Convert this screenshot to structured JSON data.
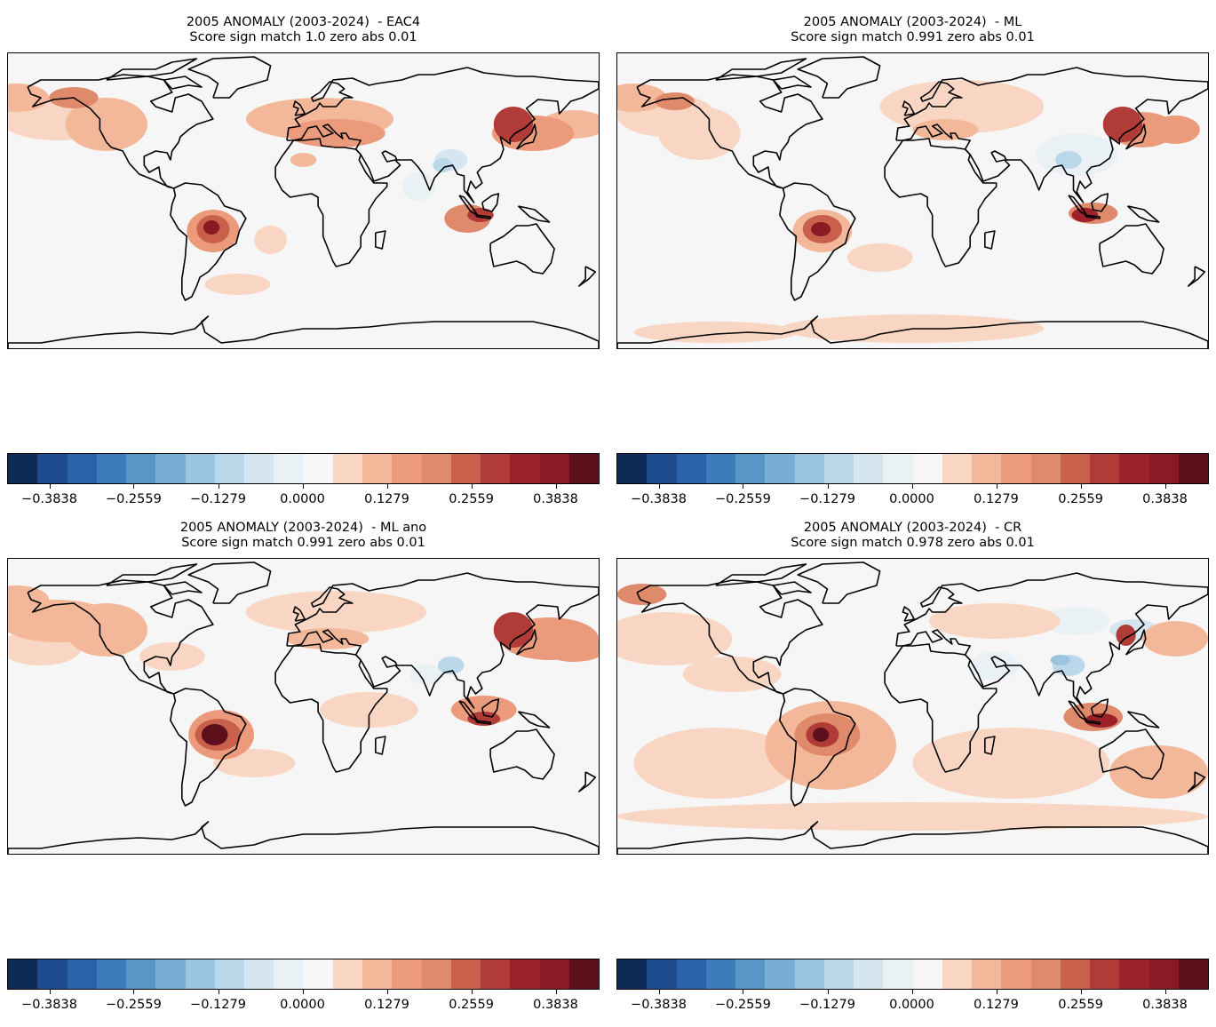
{
  "figure": {
    "colormap": "RdBu_r",
    "colorbar_colors": [
      "#0e2a57",
      "#1e4a8e",
      "#2c62a9",
      "#3d7bbb",
      "#5896c8",
      "#79aed4",
      "#9ac5df",
      "#bad8e9",
      "#d5e6f0",
      "#eaf1f5",
      "#f7f7f7",
      "#f8d6c3",
      "#f3b89a",
      "#eb9b7b",
      "#e08a6c",
      "#c9604b",
      "#b13b36",
      "#9c2129",
      "#8a1b24",
      "#5d0f1b"
    ],
    "colorbar_ticks": [
      "−0.3838",
      "−0.2559",
      "−0.1279",
      "0.0000",
      "0.1279",
      "0.2559",
      "0.3838"
    ]
  },
  "chart_data": [
    {
      "type": "heatmap",
      "projection": "PlateCarree",
      "title": "2005 ANOMALY (2003-2024)  - EAC4",
      "subtitle": "Score sign match 1.0 zero abs 0.01",
      "colorbar": {
        "vmin": -0.4477,
        "vmax": 0.4477,
        "levels": 20,
        "tick_values": [
          -0.3838,
          -0.2559,
          -0.1279,
          0.0,
          0.1279,
          0.2559,
          0.3838
        ]
      },
      "features": [
        {
          "region": "Central South America (Bolivia/Brazil)",
          "anomaly": 0.4
        },
        {
          "region": "North Pacific",
          "anomaly": 0.13
        },
        {
          "region": "Northeast China / Korea",
          "anomaly": 0.3
        },
        {
          "region": "Indonesia",
          "anomaly": 0.28
        },
        {
          "region": "India / Bay of Bengal",
          "anomaly": -0.1
        }
      ]
    },
    {
      "type": "heatmap",
      "projection": "PlateCarree",
      "title": "2005 ANOMALY (2003-2024)  - ML",
      "subtitle": "Score sign match 0.991 zero abs 0.01",
      "colorbar": {
        "vmin": -0.4477,
        "vmax": 0.4477,
        "levels": 20,
        "tick_values": [
          -0.3838,
          -0.2559,
          -0.1279,
          0.0,
          0.1279,
          0.2559,
          0.3838
        ]
      },
      "features": [
        {
          "region": "Central South America (Bolivia/Brazil)",
          "anomaly": 0.4
        },
        {
          "region": "Southern Ocean",
          "anomaly": 0.1
        },
        {
          "region": "Northeast China / Korea",
          "anomaly": 0.3
        },
        {
          "region": "Indonesia",
          "anomaly": 0.3
        },
        {
          "region": "India / Bay of Bengal",
          "anomaly": -0.1
        }
      ]
    },
    {
      "type": "heatmap",
      "projection": "PlateCarree",
      "title": "2005 ANOMALY (2003-2024)  - ML ano",
      "subtitle": "Score sign match 0.991 zero abs 0.01",
      "colorbar": {
        "vmin": -0.4477,
        "vmax": 0.4477,
        "levels": 20,
        "tick_values": [
          -0.3838,
          -0.2559,
          -0.1279,
          0.0,
          0.1279,
          0.2559,
          0.3838
        ]
      },
      "features": [
        {
          "region": "Central South America (Bolivia/Brazil)",
          "anomaly": 0.45
        },
        {
          "region": "North Pacific",
          "anomaly": 0.15
        },
        {
          "region": "Northeast China / Korea",
          "anomaly": 0.3
        },
        {
          "region": "Indonesia",
          "anomaly": 0.28
        },
        {
          "region": "India / Bay of Bengal",
          "anomaly": -0.1
        }
      ]
    },
    {
      "type": "heatmap",
      "projection": "PlateCarree",
      "title": "2005 ANOMALY (2003-2024)  - CR",
      "subtitle": "Score sign match 0.978 zero abs 0.01",
      "colorbar": {
        "vmin": -0.4477,
        "vmax": 0.4477,
        "levels": 20,
        "tick_values": [
          -0.3838,
          -0.2559,
          -0.1279,
          0.0,
          0.1279,
          0.2559,
          0.3838
        ]
      },
      "features": [
        {
          "region": "Central South America (Bolivia/Brazil)",
          "anomaly": 0.45
        },
        {
          "region": "Southern Hemisphere oceans",
          "anomaly": 0.1
        },
        {
          "region": "Northeast China / Korea",
          "anomaly": 0.3
        },
        {
          "region": "Indonesia",
          "anomaly": 0.32
        },
        {
          "region": "India / Bay of Bengal",
          "anomaly": -0.12
        }
      ]
    }
  ]
}
